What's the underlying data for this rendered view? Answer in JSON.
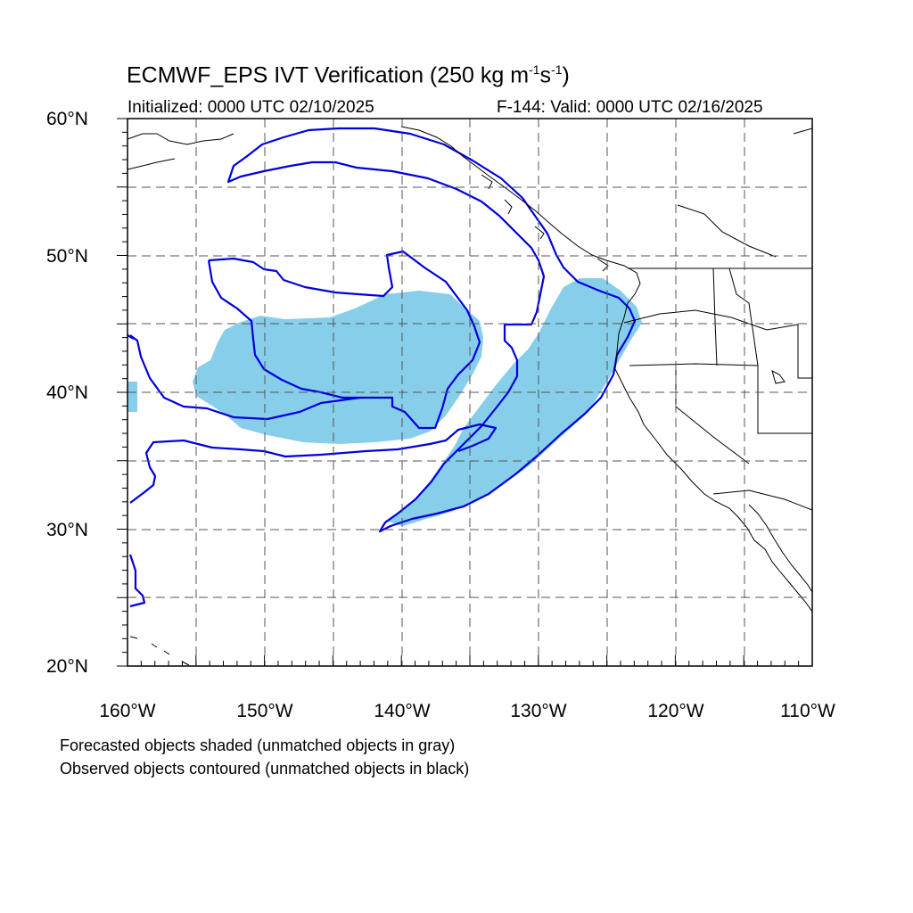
{
  "title": {
    "main": "ECMWF_EPS IVT Verification (250 kg m",
    "sup1": "-1",
    "mid": "s",
    "sup2": "-1",
    "end": ")"
  },
  "initialized": "Initialized: 0000 UTC 02/10/2025",
  "valid": "F-144: Valid: 0000 UTC 02/16/2025",
  "lat_labels": [
    "60°N",
    "50°N",
    "40°N",
    "30°N",
    "20°N"
  ],
  "lon_labels": [
    "160°W",
    "150°W",
    "140°W",
    "130°W",
    "120°W",
    "110°W"
  ],
  "notes": {
    "line1": "Forecasted objects shaded (unmatched objects in gray)",
    "line2": "Observed objects contoured (unmatched objects in black)"
  },
  "colors": {
    "forecast_shade": "#87ceeb",
    "observed_contour": "#0000dd",
    "coastline": "#000000",
    "grid": "#555555"
  },
  "map_extent": {
    "lon_min": -160,
    "lon_max": -110,
    "lat_min": 20,
    "lat_max": 60
  }
}
